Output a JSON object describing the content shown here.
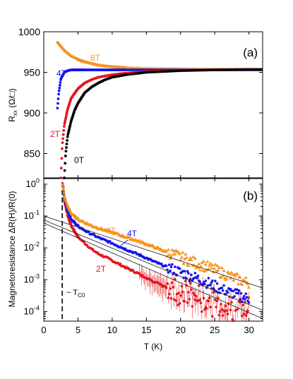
{
  "colors": {
    "0T": "#000000",
    "2T": "#e8141c",
    "4T": "#1414f0",
    "8T": "#f7941d",
    "fit": "#333333",
    "dash": "#000000"
  },
  "chart_data": [
    {
      "panel": "(a)",
      "type": "scatter",
      "ylabel": "R_xx (Ω/□)",
      "ylabel_main": "R",
      "ylabel_sub": "xx",
      "ylabel_unit": "(Ω/□)",
      "xlim": [
        0,
        32
      ],
      "ylim": [
        820,
        1000
      ],
      "yticks": [
        850,
        900,
        950,
        1000
      ],
      "xticks": [
        0,
        5,
        10,
        15,
        20,
        25,
        30
      ],
      "series": [
        {
          "name": "8T",
          "x": [
            2.0,
            2.5,
            3.0,
            4.0,
            5.0,
            6.0,
            7.0,
            8.0,
            10.0,
            12.0,
            15.0,
            20.0,
            25.0,
            30.0,
            32.0
          ],
          "y": [
            987,
            982,
            977,
            970,
            966,
            963,
            961,
            959,
            957,
            956,
            955,
            954.5,
            954,
            954,
            954
          ]
        },
        {
          "name": "4T",
          "x": [
            2.0,
            2.2,
            2.5,
            3.0,
            3.5,
            4.0,
            5.0,
            6.0,
            8.0,
            10.0,
            15.0,
            20.0,
            25.0,
            30.0,
            32.0
          ],
          "y": [
            906,
            925,
            942,
            950,
            952,
            953,
            953,
            953,
            953,
            953,
            953,
            953,
            953,
            953,
            953
          ]
        },
        {
          "name": "2T",
          "x": [
            2.5,
            2.7,
            3.0,
            3.5,
            4.0,
            5.0,
            6.0,
            7.0,
            8.0,
            10.0,
            12.0,
            15.0,
            20.0,
            25.0,
            30.0,
            32.0
          ],
          "y": [
            820,
            860,
            885,
            905,
            918,
            930,
            937,
            941,
            944,
            947,
            949,
            951,
            952.5,
            953,
            953.5,
            953.5
          ]
        },
        {
          "name": "0T",
          "x": [
            3.0,
            3.2,
            3.5,
            4.0,
            4.5,
            5.0,
            6.0,
            7.0,
            8.0,
            9.0,
            10.0,
            12.0,
            15.0,
            20.0,
            25.0,
            30.0,
            32.0
          ],
          "y": [
            820,
            850,
            872,
            890,
            903,
            912,
            925,
            932,
            937,
            941,
            944,
            947,
            950,
            952,
            953,
            953.5,
            953.5
          ]
        }
      ],
      "labels": [
        "8T",
        "4T",
        "2T",
        "0T"
      ]
    },
    {
      "panel": "(b)",
      "type": "scatter",
      "xlabel": "T (K)",
      "ylabel": "Magnetoresistance ΔR(H)/R(0)",
      "yscale": "log",
      "xlim": [
        0,
        32
      ],
      "ylim": [
        5e-05,
        1.5
      ],
      "xticks": [
        0,
        5,
        10,
        15,
        20,
        25,
        30
      ],
      "yticks": [
        "10^-4",
        "10^-3",
        "10^-2",
        "10^-1",
        "10^0"
      ],
      "annotation": "~ T",
      "annotation_sub": "C0",
      "tc0_x": 2.7,
      "series": [
        {
          "name": "8T",
          "x": [
            2.8,
            3.0,
            3.5,
            4.0,
            5.0,
            6.0,
            7.0,
            8.0,
            10.0,
            12.0,
            14.0,
            16.0,
            18.0,
            20.0,
            22.0,
            24.0,
            26.0,
            28.0,
            30.0
          ],
          "y": [
            1.0,
            0.4,
            0.2,
            0.12,
            0.08,
            0.063,
            0.05,
            0.042,
            0.031,
            0.022,
            0.016,
            0.011,
            0.0075,
            0.0052,
            0.0035,
            0.0025,
            0.0017,
            0.0011,
            0.0008
          ]
        },
        {
          "name": "4T",
          "x": [
            2.8,
            3.0,
            3.5,
            4.0,
            5.0,
            6.0,
            7.0,
            8.0,
            10.0,
            12.0,
            14.0,
            16.0,
            18.0,
            20.0,
            22.0,
            24.0,
            26.0,
            28.0,
            30.0
          ],
          "y": [
            1.0,
            0.35,
            0.15,
            0.08,
            0.048,
            0.035,
            0.027,
            0.021,
            0.014,
            0.009,
            0.006,
            0.0038,
            0.0025,
            0.0017,
            0.0012,
            0.0008,
            0.0005,
            0.00035,
            0.00025
          ]
        },
        {
          "name": "2T",
          "x": [
            2.8,
            3.0,
            3.5,
            4.0,
            5.0,
            6.0,
            7.0,
            8.0,
            10.0,
            12.0,
            14.0,
            16.0,
            18.0,
            20.0,
            22.0,
            24.0,
            26.0,
            28.0,
            30.0
          ],
          "y": [
            1.0,
            0.3,
            0.1,
            0.05,
            0.022,
            0.014,
            0.009,
            0.0065,
            0.004,
            0.0024,
            0.0015,
            0.0009,
            0.00055,
            0.0004,
            0.0003,
            0.00022,
            0.00016,
            0.00012,
            0.0001
          ]
        },
        {
          "name": "fit-1",
          "x": [
            0,
            32
          ],
          "y": [
            0.1,
            0.00055
          ]
        },
        {
          "name": "fit-2",
          "x": [
            0,
            32
          ],
          "y": [
            0.075,
            0.00011
          ]
        },
        {
          "name": "fit-3",
          "x": [
            0,
            32
          ],
          "y": [
            0.06,
            6e-05
          ]
        }
      ],
      "labels": [
        "8T",
        "4T",
        "2T"
      ]
    }
  ],
  "panel_a_label": "(a)",
  "panel_b_label": "(b)",
  "x_axis_label": "T (K)",
  "label_8T": "8T",
  "label_4T": "4T",
  "label_2T": "2T",
  "label_0T": "0T"
}
